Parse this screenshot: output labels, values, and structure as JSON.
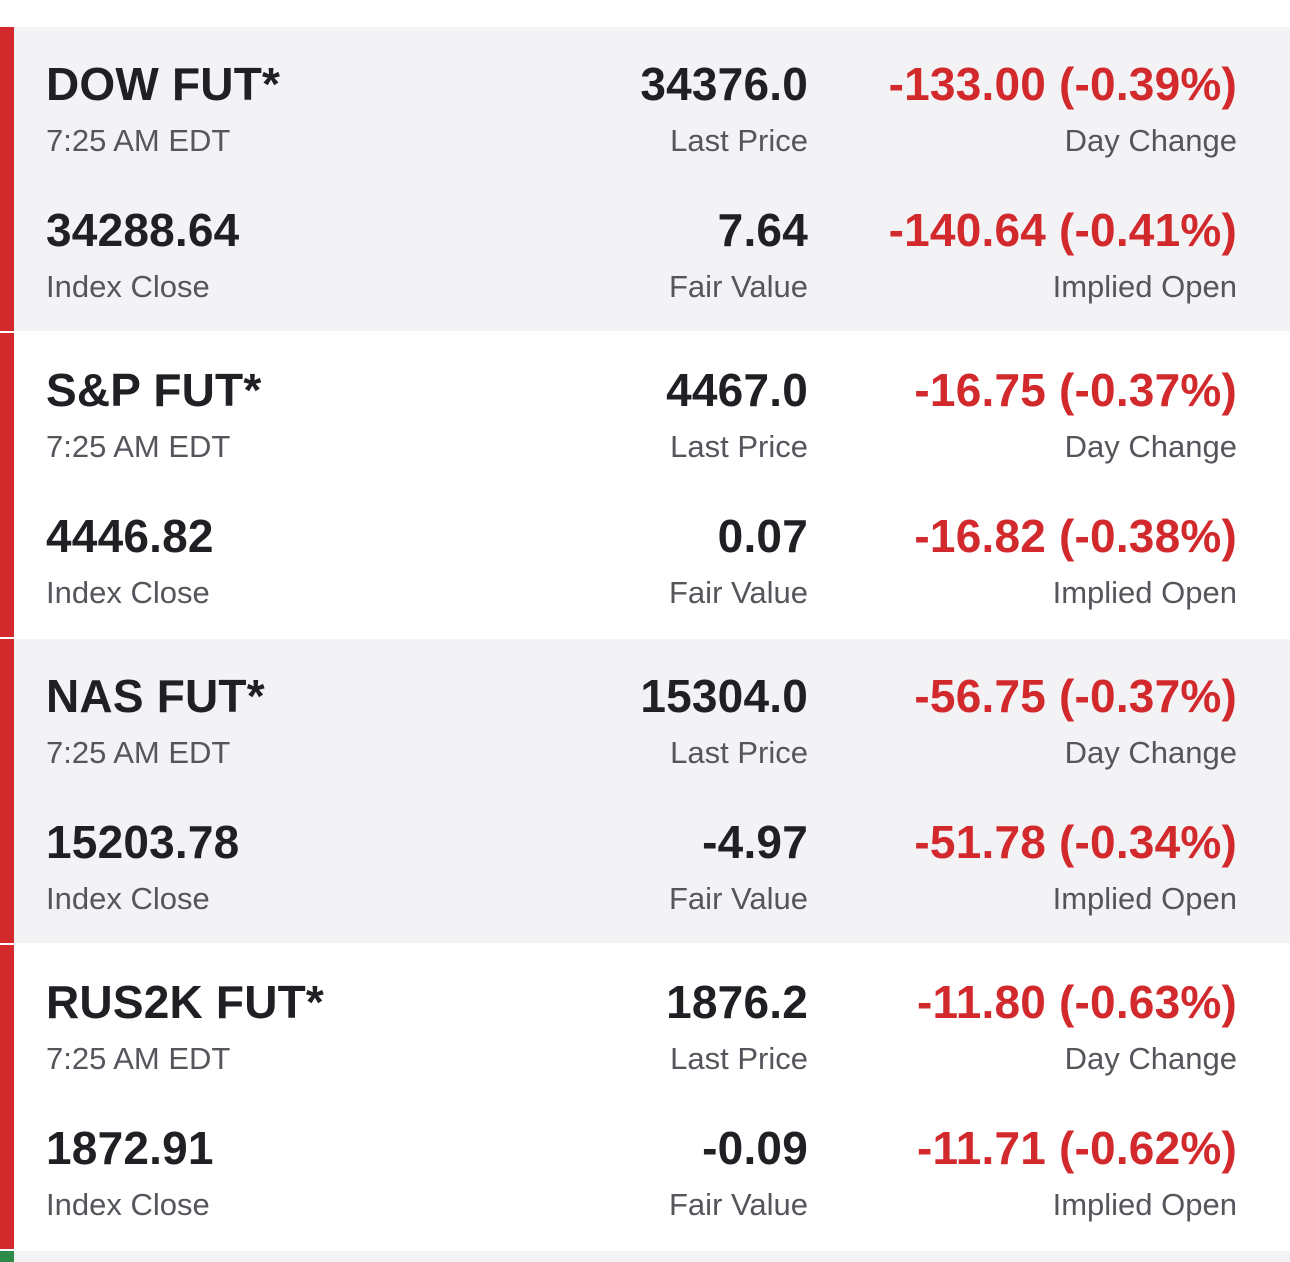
{
  "rows": [
    {
      "name": "DOW FUT*",
      "time": "7:25 AM EDT",
      "last_price": "34376.0",
      "last_price_label": "Last Price",
      "day_change": "-133.00 (-0.39%)",
      "day_change_label": "Day Change",
      "index_close": "34288.64",
      "index_close_label": "Index Close",
      "fair_value": "7.64",
      "fair_value_label": "Fair Value",
      "implied_open": "-140.64 (-0.41%)",
      "implied_open_label": "Implied Open"
    },
    {
      "name": "S&P FUT*",
      "time": "7:25 AM EDT",
      "last_price": "4467.0",
      "last_price_label": "Last Price",
      "day_change": "-16.75 (-0.37%)",
      "day_change_label": "Day Change",
      "index_close": "4446.82",
      "index_close_label": "Index Close",
      "fair_value": "0.07",
      "fair_value_label": "Fair Value",
      "implied_open": "-16.82 (-0.38%)",
      "implied_open_label": "Implied Open"
    },
    {
      "name": "NAS FUT*",
      "time": "7:25 AM EDT",
      "last_price": "15304.0",
      "last_price_label": "Last Price",
      "day_change": "-56.75 (-0.37%)",
      "day_change_label": "Day Change",
      "index_close": "15203.78",
      "index_close_label": "Index Close",
      "fair_value": "-4.97",
      "fair_value_label": "Fair Value",
      "implied_open": "-51.78 (-0.34%)",
      "implied_open_label": "Implied Open"
    },
    {
      "name": "RUS2K FUT*",
      "time": "7:25 AM EDT",
      "last_price": "1876.2",
      "last_price_label": "Last Price",
      "day_change": "-11.80 (-0.63%)",
      "day_change_label": "Day Change",
      "index_close": "1872.91",
      "index_close_label": "Index Close",
      "fair_value": "-0.09",
      "fair_value_label": "Fair Value",
      "implied_open": "-11.71 (-0.62%)",
      "implied_open_label": "Implied Open"
    }
  ],
  "colors": {
    "negative": "#d2292d",
    "positive_indicator": "#2e8b47",
    "primary_text": "#1f1f24",
    "secondary_text": "#55565c",
    "row_shade": "#f3f3f6"
  }
}
